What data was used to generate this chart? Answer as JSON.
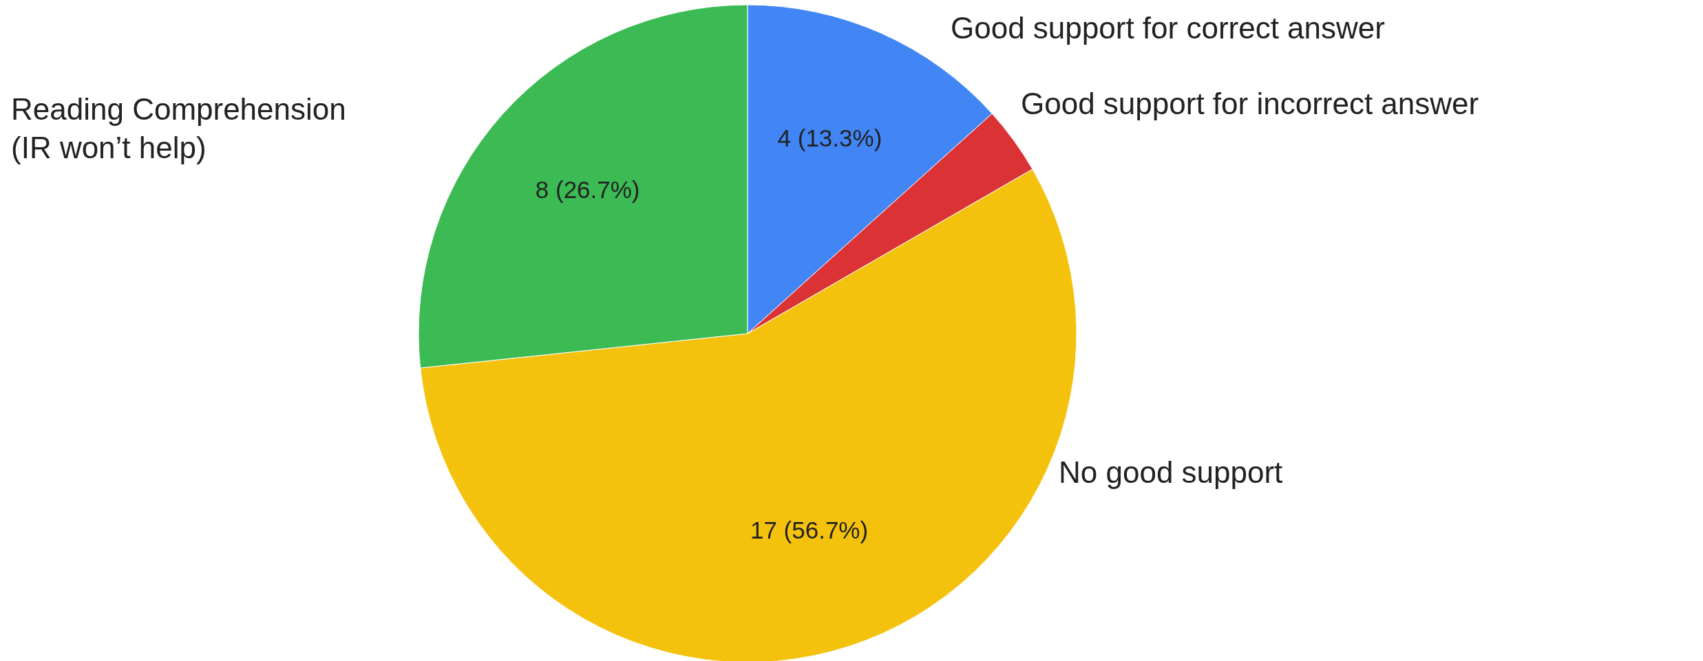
{
  "chart_data": {
    "type": "pie",
    "categories": [
      "Good support for correct answer",
      "Good support for incorrect answer",
      "No good support",
      "Reading Comprehension (IR won’t help)"
    ],
    "values": [
      4,
      1,
      17,
      8
    ],
    "colors": [
      "#4285f4",
      "#db3236",
      "#f4c20d",
      "#3cba54"
    ],
    "value_labels": [
      "4 (13.3%)",
      null,
      "17 (56.7%)",
      "8 (26.7%)"
    ]
  }
}
